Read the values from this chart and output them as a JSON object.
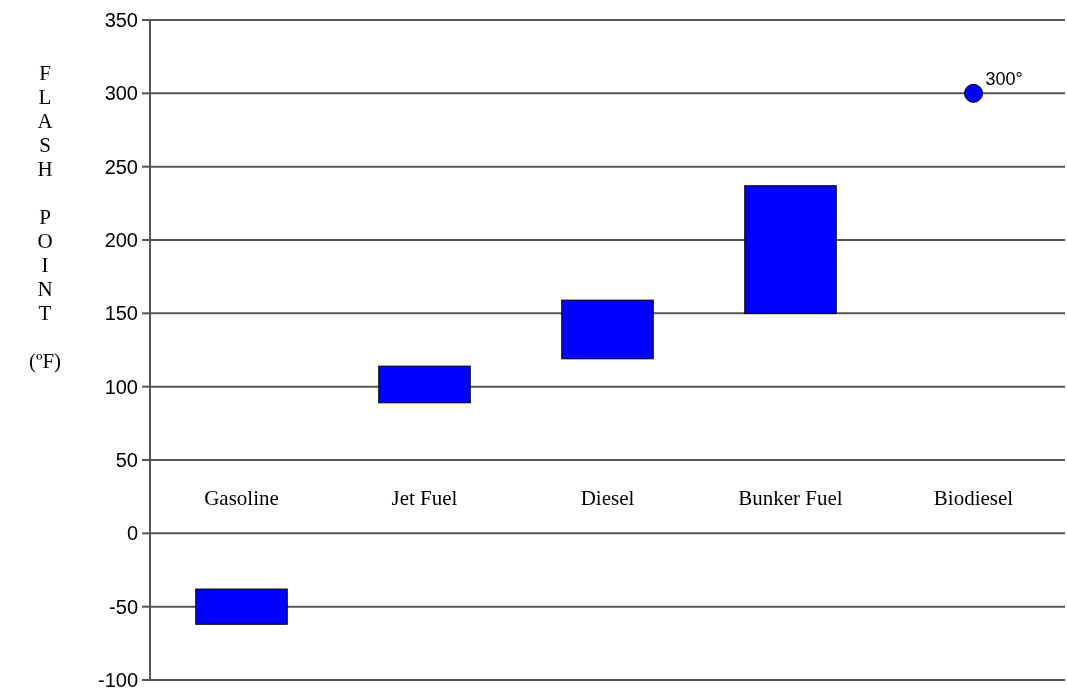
{
  "chart_data": {
    "type": "bar",
    "ylabel": "FLASH POINT (ºF)",
    "categories": [
      "Gasoline",
      "Jet Fuel",
      "Diesel",
      "Bunker Fuel",
      "Biodiesel"
    ],
    "series": [
      {
        "color": "#0000ff",
        "values": [
          24,
          25,
          40,
          87,
          null
        ],
        "base": [
          -62,
          89,
          119,
          150,
          null
        ]
      },
      {
        "type": "scatter",
        "color": "#0000ff",
        "x": [
          "Biodiesel"
        ],
        "values": [
          300
        ],
        "value_labels": [
          "300°"
        ],
        "marker": "circle"
      }
    ],
    "ylim": [
      -100,
      350
    ],
    "yticks": [
      -100,
      -50,
      0,
      50,
      100,
      150,
      200,
      250,
      300,
      350
    ],
    "grid": "y"
  }
}
